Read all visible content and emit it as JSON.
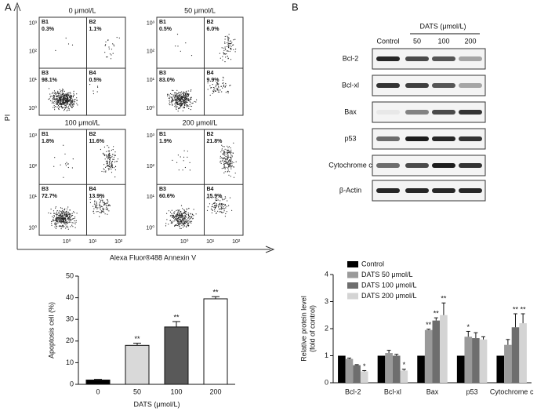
{
  "panel_labels": [
    "A",
    "B"
  ],
  "flow_cytometry": {
    "y_axis_label": "PI",
    "x_axis_label": "Alexa Fluor®488 Annexin V",
    "y_ticks": [
      "10³",
      "10²",
      "10¹",
      "10⁰"
    ],
    "x_ticks": [
      "10⁰",
      "10¹",
      "10²"
    ],
    "plots": [
      {
        "title": "0 μmol/L",
        "quadrants": [
          {
            "name": "B1",
            "value": "0.3%"
          },
          {
            "name": "B2",
            "value": "1.1%"
          },
          {
            "name": "B3",
            "value": "98.1%"
          },
          {
            "name": "B4",
            "value": "0.5%"
          }
        ]
      },
      {
        "title": "50 μmol/L",
        "quadrants": [
          {
            "name": "B1",
            "value": "0.5%"
          },
          {
            "name": "B2",
            "value": "6.0%"
          },
          {
            "name": "B3",
            "value": "83.0%"
          },
          {
            "name": "B4",
            "value": "9.9%"
          }
        ]
      },
      {
        "title": "100 μmol/L",
        "quadrants": [
          {
            "name": "B1",
            "value": "1.8%"
          },
          {
            "name": "B2",
            "value": "11.6%"
          },
          {
            "name": "B3",
            "value": "72.7%"
          },
          {
            "name": "B4",
            "value": "13.9%"
          }
        ]
      },
      {
        "title": "200 μmol/L",
        "quadrants": [
          {
            "name": "B1",
            "value": "1.9%"
          },
          {
            "name": "B2",
            "value": "21.8%"
          },
          {
            "name": "B3",
            "value": "60.6%"
          },
          {
            "name": "B4",
            "value": "15.9%"
          }
        ]
      }
    ]
  },
  "western_blot": {
    "group_label": "DATS (μmol/L)",
    "lanes": [
      "Control",
      "50",
      "100",
      "200"
    ],
    "rows": [
      "Bcl-2",
      "Bcl-xl",
      "Bax",
      "p53",
      "Cytochrome c",
      "β-Actin"
    ]
  },
  "chart_data": [
    {
      "type": "bar",
      "y_label": "Apoptosis cell (%)",
      "x_label": "DATS (μmol/L)",
      "categories": [
        "0",
        "50",
        "100",
        "200"
      ],
      "values": [
        2,
        18,
        26.5,
        39.5
      ],
      "errors": [
        0.3,
        1,
        2.5,
        1
      ],
      "colors": [
        "#000000",
        "#d9d9d9",
        "#595959",
        "#ffffff"
      ],
      "annotations": [
        null,
        "**",
        "**",
        "**"
      ],
      "ylim": [
        0,
        50
      ],
      "yticks": [
        0,
        10,
        20,
        30,
        40,
        50
      ]
    },
    {
      "type": "grouped_bar",
      "y_label": [
        "Relative protein level",
        "(fold of control)"
      ],
      "categories": [
        "Bcl-2",
        "Bcl-xl",
        "Bax",
        "p53",
        "Cytochrome c"
      ],
      "ylim": [
        0,
        4
      ],
      "yticks": [
        0,
        1,
        2,
        3,
        4
      ],
      "series": [
        {
          "name": "Control",
          "color": "#000000",
          "values": [
            1,
            1,
            1,
            1,
            1
          ]
        },
        {
          "name": "DATS 50 μmol/L",
          "color": "#9a9a9a",
          "values": [
            0.88,
            1.1,
            1.95,
            1.7,
            1.4
          ],
          "errors": [
            0.03,
            0.1,
            0.03,
            0.2,
            0.2
          ],
          "annotations": [
            null,
            null,
            "**",
            "*",
            null
          ]
        },
        {
          "name": "DATS 100 μmol/L",
          "color": "#6e6e6e",
          "values": [
            0.65,
            1.0,
            2.3,
            1.65,
            2.05
          ],
          "errors": [
            0.02,
            0.05,
            0.1,
            0.2,
            0.5
          ],
          "annotations": [
            null,
            null,
            "**",
            null,
            "**"
          ]
        },
        {
          "name": "DATS 200 μmol/L",
          "color": "#d4d4d4",
          "values": [
            0.42,
            0.45,
            2.5,
            1.6,
            2.2
          ],
          "errors": [
            0.03,
            0.05,
            0.45,
            0.1,
            0.35
          ],
          "annotations": [
            "*",
            "*",
            "**",
            null,
            "**"
          ]
        }
      ]
    }
  ]
}
